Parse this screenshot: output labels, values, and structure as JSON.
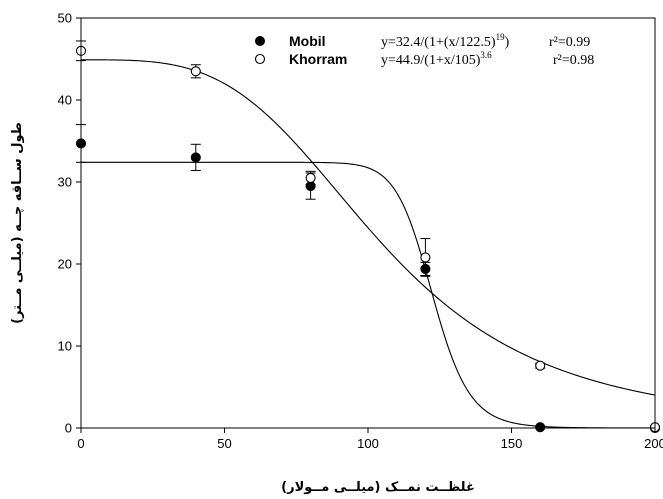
{
  "chart_data": {
    "type": "scatter",
    "xlabel": "غلظــت نمــک (میلــی مــولار)",
    "ylabel": "طول ســاقه چــه (میلــی مــتر)",
    "xlim": [
      0,
      200
    ],
    "ylim": [
      0,
      50
    ],
    "xticks": [
      "0",
      "50",
      "100",
      "150",
      "200"
    ],
    "yticks": [
      "0",
      "10",
      "20",
      "30",
      "40",
      "50"
    ],
    "grid": false,
    "legend_position": "top-right",
    "series": [
      {
        "name": "Mobil",
        "marker": "filled-circle",
        "equation_parts": {
          "pre": "y=32.4/(1+(x/122.5)",
          "exp": "19",
          "post": ")"
        },
        "r2": "r²=0.99",
        "fit": {
          "a": 32.4,
          "x0": 122.5,
          "b": 19
        },
        "x": [
          0,
          40,
          80,
          120,
          160,
          200
        ],
        "y": [
          34.7,
          33.0,
          29.5,
          19.4,
          0.1,
          0.0
        ],
        "err": [
          2.3,
          1.6,
          1.6,
          0.8,
          0.1,
          0.0
        ]
      },
      {
        "name": "Khorram",
        "marker": "open-circle",
        "equation_parts": {
          "pre": "y=44.9/(1+x/105)",
          "exp": "3.6",
          "post": ""
        },
        "r2": "r²=0.98",
        "fit": {
          "a": 44.9,
          "x0": 105,
          "b": 3.6
        },
        "x": [
          0,
          40,
          80,
          120,
          160,
          200
        ],
        "y": [
          46.0,
          43.5,
          30.5,
          20.8,
          7.6,
          0.1
        ],
        "err": [
          1.2,
          0.8,
          0.8,
          2.3,
          0.3,
          0.1
        ]
      }
    ]
  }
}
